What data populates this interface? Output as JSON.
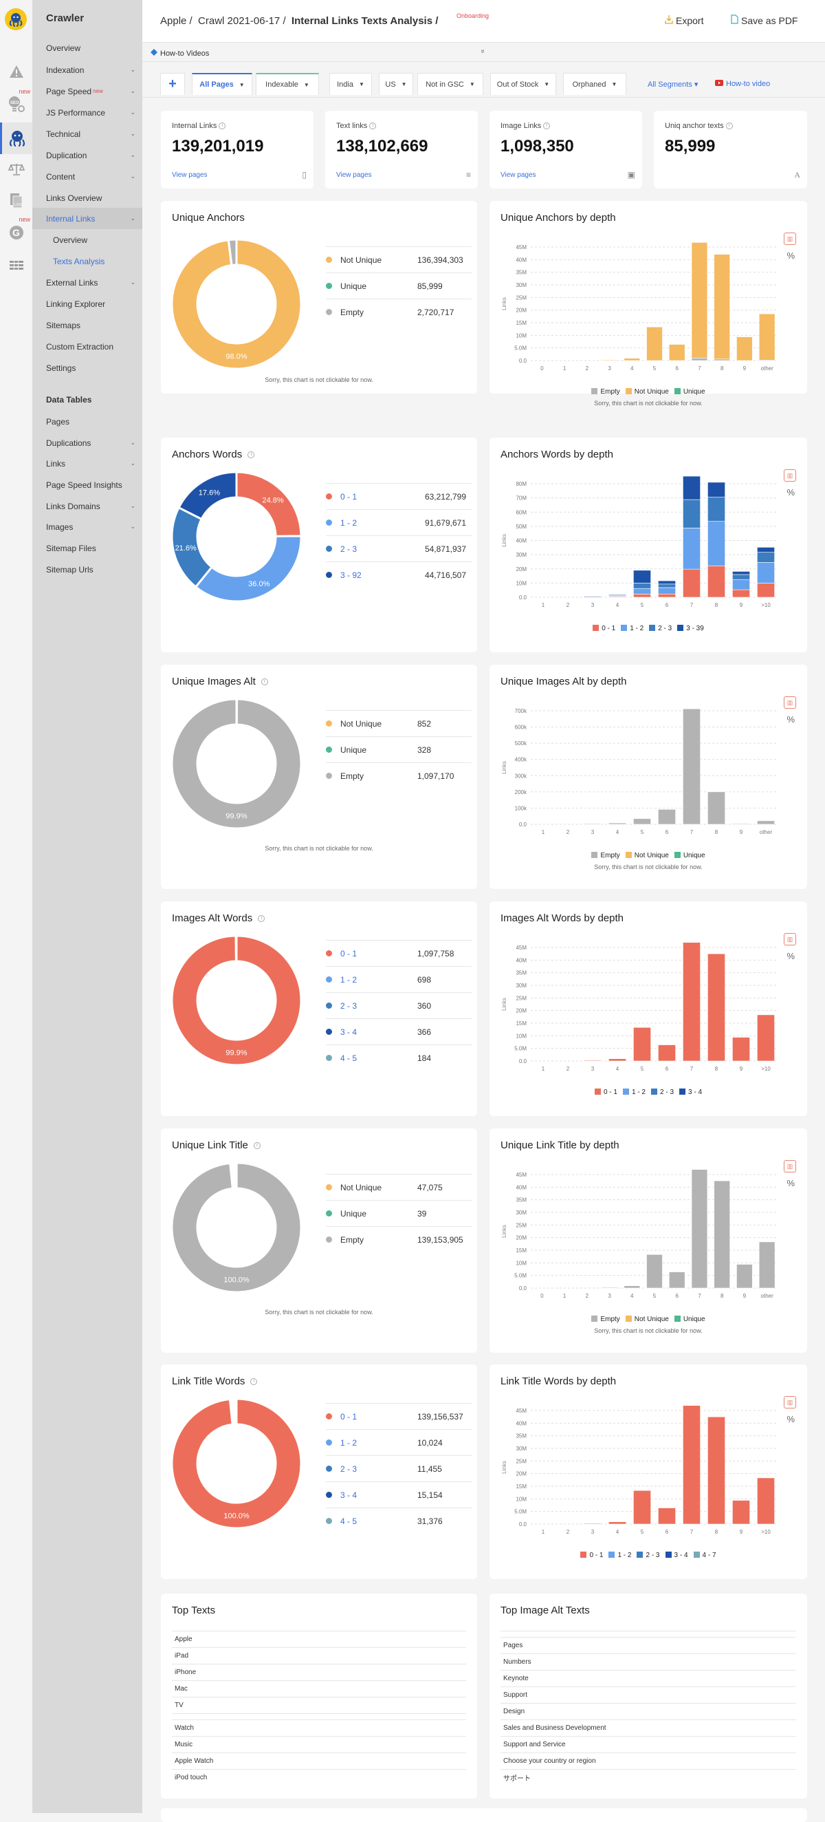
{
  "app": {
    "title": "Crawler"
  },
  "rail": {
    "items": [
      {
        "icon": "warning-icon",
        "new": false
      },
      {
        "icon": "seo-settings-icon",
        "new": true,
        "new_label": "new"
      },
      {
        "icon": "octopus-crawler-icon",
        "new": false,
        "active": true
      },
      {
        "icon": "scales-icon",
        "new": false
      },
      {
        "icon": "log-files-icon",
        "new": false
      },
      {
        "icon": "google-icon",
        "new": true,
        "new_label": "new"
      },
      {
        "icon": "data-tables-icon",
        "new": false
      }
    ]
  },
  "sidebar": {
    "items": [
      {
        "label": "Overview",
        "chevron": false
      },
      {
        "label": "Indexation",
        "chevron": true
      },
      {
        "label": "Page Speed",
        "chevron": true,
        "badge": "new"
      },
      {
        "label": "JS Performance",
        "chevron": true
      },
      {
        "label": "Technical",
        "chevron": true
      },
      {
        "label": "Duplication",
        "chevron": true
      },
      {
        "label": "Content",
        "chevron": true
      },
      {
        "label": "Links Overview",
        "chevron": false
      },
      {
        "label": "Internal Links",
        "chevron": true,
        "active": true
      },
      {
        "label": "Overview",
        "chevron": false,
        "sub": true
      },
      {
        "label": "Texts Analysis",
        "chevron": false,
        "sub": true,
        "selected": true
      },
      {
        "label": "External Links",
        "chevron": true
      },
      {
        "label": "Linking Explorer",
        "chevron": false
      },
      {
        "label": "Sitemaps",
        "chevron": false
      },
      {
        "label": "Custom Extraction",
        "chevron": false
      },
      {
        "label": "Settings",
        "chevron": false
      }
    ],
    "section_title": "Data Tables",
    "data_tables": [
      {
        "label": "Pages",
        "chevron": false
      },
      {
        "label": "Duplications",
        "chevron": true
      },
      {
        "label": "Links",
        "chevron": true
      },
      {
        "label": "Page Speed Insights",
        "chevron": false
      },
      {
        "label": "Links Domains",
        "chevron": true
      },
      {
        "label": "Images",
        "chevron": true
      },
      {
        "label": "Sitemap Files",
        "chevron": false
      },
      {
        "label": "Sitemap Urls",
        "chevron": false
      }
    ]
  },
  "header": {
    "breadcrumb": [
      "Apple /",
      "Crawl 2021-06-17 /",
      "Internal Links Texts Analysis /"
    ],
    "onboarding": "Onboarding",
    "export_label": "Export",
    "pdf_label": "Save as PDF"
  },
  "howto": {
    "label": "How-to Videos",
    "toggle": "»"
  },
  "filters": {
    "add": "+",
    "tabs": [
      "All Pages",
      "Indexable",
      "India",
      "US",
      "Not in GSC",
      "Out of Stock",
      "Orphaned"
    ],
    "all_segments": "All Segments ▾",
    "howto_video": "How-to video"
  },
  "stats": [
    {
      "label": "Internal Links",
      "value": "139,201,019",
      "link": "View pages",
      "icon": "page-icon"
    },
    {
      "label": "Text links",
      "value": "138,102,669",
      "link": "View pages",
      "icon": "text-lines-icon"
    },
    {
      "label": "Image Links",
      "value": "1,098,350",
      "link": "View pages",
      "icon": "image-icon"
    },
    {
      "label": "Uniq anchor texts",
      "value": "85,999",
      "link": "",
      "icon": "font-icon"
    }
  ],
  "colors": {
    "not_unique": "#f5b95f",
    "unique": "#4cb98f",
    "empty": "#b3b3b3",
    "w01": "#ec6e5a",
    "w12": "#66a1ed",
    "w23": "#3b7dc0",
    "w3x": "#1d52a8",
    "w45": "#79a9b8",
    "link": "#3a6fd8"
  },
  "not_clickable": "Sorry, this chart is not clickable for now.",
  "donuts": [
    {
      "title": "Unique Anchors",
      "info": false,
      "segments": [
        {
          "name": "Not Unique",
          "value": "136,394,303",
          "num": 136394303,
          "color": "#f5b95f",
          "link": false
        },
        {
          "name": "Unique",
          "value": "85,999",
          "num": 85999,
          "color": "#4cb98f",
          "link": false
        },
        {
          "name": "Empty",
          "value": "2,720,717",
          "num": 2720717,
          "color": "#b3b3b3",
          "link": false
        }
      ],
      "labels": [
        {
          "text": "98.0%",
          "seg": 0
        }
      ],
      "note": true
    },
    {
      "title": "Anchors Words",
      "info": true,
      "segments": [
        {
          "name": "0 - 1",
          "value": "63,212,799",
          "num": 63212799,
          "color": "#ec6e5a",
          "link": true
        },
        {
          "name": "1 - 2",
          "value": "91,679,671",
          "num": 91679671,
          "color": "#66a1ed",
          "link": true
        },
        {
          "name": "2 - 3",
          "value": "54,871,937",
          "num": 54871937,
          "color": "#3b7dc0",
          "link": true
        },
        {
          "name": "3 - 92",
          "value": "44,716,507",
          "num": 44716507,
          "color": "#1d52a8",
          "link": true
        }
      ],
      "labels": [
        {
          "text": "24.8%",
          "seg": 0
        },
        {
          "text": "36.0%",
          "seg": 1
        },
        {
          "text": "21.6%",
          "seg": 2
        },
        {
          "text": "17.6%",
          "seg": 3
        }
      ],
      "note": false
    },
    {
      "title": "Unique Images Alt",
      "info": true,
      "segments": [
        {
          "name": "Not Unique",
          "value": "852",
          "num": 852,
          "color": "#f5b95f",
          "link": false
        },
        {
          "name": "Unique",
          "value": "328",
          "num": 328,
          "color": "#4cb98f",
          "link": false
        },
        {
          "name": "Empty",
          "value": "1,097,170",
          "num": 1097170,
          "color": "#b3b3b3",
          "link": false
        }
      ],
      "labels": [
        {
          "text": "99.9%",
          "seg": 2
        }
      ],
      "note": true
    },
    {
      "title": "Images Alt Words",
      "info": true,
      "segments": [
        {
          "name": "0 - 1",
          "value": "1,097,758",
          "num": 1097758,
          "color": "#ec6e5a",
          "link": true
        },
        {
          "name": "1 - 2",
          "value": "698",
          "num": 698,
          "color": "#66a1ed",
          "link": true
        },
        {
          "name": "2 - 3",
          "value": "360",
          "num": 360,
          "color": "#3b7dc0",
          "link": true
        },
        {
          "name": "3 - 4",
          "value": "366",
          "num": 366,
          "color": "#1d52a8",
          "link": true
        },
        {
          "name": "4 - 5",
          "value": "184",
          "num": 184,
          "color": "#79a9b8",
          "link": true
        }
      ],
      "labels": [
        {
          "text": "99.9%",
          "seg": 0
        }
      ],
      "note": false
    },
    {
      "title": "Unique Link Title",
      "info": true,
      "segments": [
        {
          "name": "Not Unique",
          "value": "47,075",
          "num": 47075,
          "color": "#f5b95f",
          "link": false
        },
        {
          "name": "Unique",
          "value": "39",
          "num": 39,
          "color": "#4cb98f",
          "link": false
        },
        {
          "name": "Empty",
          "value": "139,153,905",
          "num": 139153905,
          "color": "#b3b3b3",
          "link": false
        }
      ],
      "labels": [
        {
          "text": "100.0%",
          "seg": 2
        }
      ],
      "note": true
    },
    {
      "title": "Link Title Words",
      "info": true,
      "segments": [
        {
          "name": "0 - 1",
          "value": "139,156,537",
          "num": 139156537,
          "color": "#ec6e5a",
          "link": true
        },
        {
          "name": "1 - 2",
          "value": "10,024",
          "num": 10024,
          "color": "#66a1ed",
          "link": true
        },
        {
          "name": "2 - 3",
          "value": "11,455",
          "num": 11455,
          "color": "#3b7dc0",
          "link": true
        },
        {
          "name": "3 - 4",
          "value": "15,154",
          "num": 15154,
          "color": "#1d52a8",
          "link": true
        },
        {
          "name": "4 - 5",
          "value": "31,376",
          "num": 31376,
          "color": "#79a9b8",
          "link": true
        }
      ],
      "labels": [
        {
          "text": "100.0%",
          "seg": 0
        }
      ],
      "note": false
    }
  ],
  "chart_data": [
    {
      "type": "bar",
      "stacked": true,
      "title": "Unique Anchors by depth",
      "ylabel": "Links",
      "xlabel": "",
      "categories": [
        "0",
        "1",
        "2",
        "3",
        "4",
        "5",
        "6",
        "7",
        "8",
        "9",
        "other"
      ],
      "yticks": [
        "0.0",
        "5.0M",
        "10M",
        "15M",
        "20M",
        "25M",
        "30M",
        "35M",
        "40M",
        "45M"
      ],
      "ylim": [
        0,
        45000000
      ],
      "grid": true,
      "legend": "bottom",
      "series": [
        {
          "name": "Empty",
          "color": "#b3b3b3",
          "values": [
            0,
            0,
            0,
            0,
            0,
            0,
            0,
            1000000,
            600000,
            0,
            200000
          ]
        },
        {
          "name": "Not Unique",
          "color": "#f5b95f",
          "values": [
            0,
            0,
            0,
            200000,
            900000,
            13300000,
            6400000,
            45800000,
            41500000,
            9400000,
            18300000
          ]
        },
        {
          "name": "Unique",
          "color": "#4cb98f",
          "values": [
            0,
            0,
            0,
            0,
            0,
            0,
            0,
            0,
            0,
            0,
            0
          ]
        }
      ],
      "note": true
    },
    {
      "type": "bar",
      "stacked": true,
      "title": "Anchors Words by depth",
      "ylabel": "Links",
      "xlabel": "",
      "categories": [
        "1",
        "2",
        "3",
        "4",
        "5",
        "6",
        "7",
        "8",
        "9",
        ">10"
      ],
      "yticks": [
        "0.0",
        "10M",
        "20M",
        "30M",
        "40M",
        "50M",
        "60M",
        "70M",
        "80M"
      ],
      "ylim": [
        0,
        80000000
      ],
      "grid": true,
      "legend": "bottom",
      "series": [
        {
          "name": "0 - 1",
          "color": "#ec6e5a",
          "values": [
            0,
            0,
            100000,
            500000,
            2200000,
            2300000,
            19800000,
            22000000,
            5300000,
            10000000
          ]
        },
        {
          "name": "1 - 2",
          "color": "#66a1ed",
          "values": [
            0,
            0,
            200000,
            500000,
            4000000,
            4500000,
            29000000,
            31500000,
            7200000,
            14500000
          ]
        },
        {
          "name": "2 - 3",
          "color": "#3b7dc0",
          "values": [
            0,
            0,
            100000,
            600000,
            3800000,
            2500000,
            20000000,
            17000000,
            3500000,
            7200000
          ]
        },
        {
          "name": "3 - 39",
          "color": "#1d52a8",
          "values": [
            0,
            0,
            100000,
            300000,
            9000000,
            2300000,
            16500000,
            10500000,
            2200000,
            3500000
          ]
        }
      ],
      "note": false
    },
    {
      "type": "bar",
      "stacked": true,
      "title": "Unique Images Alt by depth",
      "ylabel": "Links",
      "xlabel": "",
      "categories": [
        "1",
        "2",
        "3",
        "4",
        "5",
        "6",
        "7",
        "8",
        "9",
        "other"
      ],
      "yticks": [
        "0.0",
        "100k",
        "200k",
        "300k",
        "400k",
        "500k",
        "600k",
        "700k"
      ],
      "ylim": [
        0,
        700000
      ],
      "grid": true,
      "legend": "bottom",
      "series": [
        {
          "name": "Empty",
          "color": "#b3b3b3",
          "values": [
            0,
            0,
            4000,
            8000,
            35000,
            92000,
            712000,
            200000,
            4000,
            22000
          ]
        },
        {
          "name": "Not Unique",
          "color": "#f5b95f",
          "values": [
            0,
            0,
            0,
            0,
            0,
            0,
            0,
            0,
            0,
            0
          ]
        },
        {
          "name": "Unique",
          "color": "#4cb98f",
          "values": [
            0,
            0,
            0,
            0,
            0,
            0,
            0,
            0,
            0,
            0
          ]
        }
      ],
      "note": true
    },
    {
      "type": "bar",
      "stacked": true,
      "title": "Images Alt Words by depth",
      "ylabel": "Links",
      "xlabel": "",
      "categories": [
        "1",
        "2",
        "3",
        "4",
        "5",
        "6",
        "7",
        "8",
        "9",
        ">10"
      ],
      "yticks": [
        "0.0",
        "5.0M",
        "10M",
        "15M",
        "20M",
        "25M",
        "30M",
        "35M",
        "40M",
        "45M"
      ],
      "ylim": [
        0,
        45000000
      ],
      "grid": true,
      "legend": "bottom",
      "series": [
        {
          "name": "0 - 1",
          "color": "#ec6e5a",
          "values": [
            0,
            0,
            200000,
            900000,
            13300000,
            6400000,
            47000000,
            42500000,
            9400000,
            18300000
          ]
        },
        {
          "name": "1 - 2",
          "color": "#66a1ed",
          "values": [
            0,
            0,
            0,
            0,
            0,
            0,
            0,
            0,
            0,
            0
          ]
        },
        {
          "name": "2 - 3",
          "color": "#3b7dc0",
          "values": [
            0,
            0,
            0,
            0,
            0,
            0,
            0,
            0,
            0,
            0
          ]
        },
        {
          "name": "3 - 4",
          "color": "#1d52a8",
          "values": [
            0,
            0,
            0,
            0,
            0,
            0,
            0,
            0,
            0,
            0
          ]
        }
      ],
      "note": false
    },
    {
      "type": "bar",
      "stacked": true,
      "title": "Unique Link Title by depth",
      "ylabel": "Links",
      "xlabel": "",
      "categories": [
        "0",
        "1",
        "2",
        "3",
        "4",
        "5",
        "6",
        "7",
        "8",
        "9",
        "other"
      ],
      "yticks": [
        "0.0",
        "5.0M",
        "10M",
        "15M",
        "20M",
        "25M",
        "30M",
        "35M",
        "40M",
        "45M"
      ],
      "ylim": [
        0,
        45000000
      ],
      "grid": true,
      "legend": "bottom",
      "series": [
        {
          "name": "Empty",
          "color": "#b3b3b3",
          "values": [
            0,
            0,
            0,
            200000,
            900000,
            13300000,
            6400000,
            47000000,
            42500000,
            9400000,
            18300000
          ]
        },
        {
          "name": "Not Unique",
          "color": "#f5b95f",
          "values": [
            0,
            0,
            0,
            0,
            0,
            0,
            0,
            0,
            0,
            0,
            0
          ]
        },
        {
          "name": "Unique",
          "color": "#4cb98f",
          "values": [
            0,
            0,
            0,
            0,
            0,
            0,
            0,
            0,
            0,
            0,
            0
          ]
        }
      ],
      "note": true
    },
    {
      "type": "bar",
      "stacked": true,
      "title": "Link Title Words by depth",
      "ylabel": "Links",
      "xlabel": "",
      "categories": [
        "1",
        "2",
        "3",
        "4",
        "5",
        "6",
        "7",
        "8",
        "9",
        ">10"
      ],
      "yticks": [
        "0.0",
        "5.0M",
        "10M",
        "15M",
        "20M",
        "25M",
        "30M",
        "35M",
        "40M",
        "45M"
      ],
      "ylim": [
        0,
        45000000
      ],
      "grid": true,
      "legend": "bottom",
      "series": [
        {
          "name": "0 - 1",
          "color": "#ec6e5a",
          "values": [
            0,
            0,
            200000,
            900000,
            13300000,
            6400000,
            47000000,
            42500000,
            9400000,
            18300000
          ]
        },
        {
          "name": "1 - 2",
          "color": "#66a1ed",
          "values": [
            0,
            0,
            0,
            0,
            0,
            0,
            0,
            0,
            0,
            0
          ]
        },
        {
          "name": "2 - 3",
          "color": "#3b7dc0",
          "values": [
            0,
            0,
            0,
            0,
            0,
            0,
            0,
            0,
            0,
            0
          ]
        },
        {
          "name": "3 - 4",
          "color": "#1d52a8",
          "values": [
            0,
            0,
            0,
            0,
            0,
            0,
            0,
            0,
            0,
            0
          ]
        },
        {
          "name": "4 - 7",
          "color": "#79a9b8",
          "values": [
            0,
            0,
            0,
            0,
            0,
            0,
            0,
            0,
            0,
            0
          ]
        }
      ],
      "note": false
    }
  ],
  "top_texts": {
    "title": "Top Texts",
    "rows": [
      "Apple",
      "iPad",
      "iPhone",
      "Mac",
      "TV",
      "",
      "Watch",
      "Music",
      "Apple Watch",
      "iPod touch"
    ]
  },
  "top_alt_texts": {
    "title": "Top Image Alt Texts",
    "rows": [
      "",
      "Pages",
      "Numbers",
      "Keynote",
      "Support",
      "Design",
      "Sales and Business Development",
      "Support and Service",
      "Choose your country or region",
      "サポート"
    ]
  }
}
